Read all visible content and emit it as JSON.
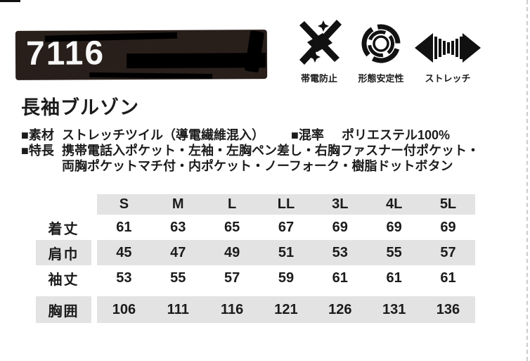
{
  "product": {
    "code": "7116",
    "title": "長袖ブルゾン"
  },
  "icons": [
    {
      "name": "anti-static",
      "label": "帯電防止"
    },
    {
      "name": "shape-stability",
      "label": "形態安定性"
    },
    {
      "name": "stretch",
      "label": "ストレッチ"
    }
  ],
  "specs": {
    "material_label": "■素材",
    "material_value": "ストレッチツイル（導電繊維混入）",
    "blend_label": "■混率",
    "blend_value": "ポリエステル100%",
    "feature_label": "■特長",
    "feature_line1": "携帯電話入ポケット・左袖・左胸ペン差し・右胸ファスナー付ポケット・",
    "feature_line2": "両胸ポケットマチ付・内ポケット・ノーフォーク・樹脂ドットボタン"
  },
  "size_table": {
    "columns": [
      "S",
      "M",
      "L",
      "LL",
      "3L",
      "4L",
      "5L"
    ],
    "rows": [
      {
        "label": "着丈",
        "values": [
          61,
          63,
          65,
          67,
          69,
          69,
          69
        ]
      },
      {
        "label": "肩巾",
        "values": [
          45,
          47,
          49,
          51,
          53,
          55,
          57
        ]
      },
      {
        "label": "袖丈",
        "values": [
          53,
          55,
          57,
          59,
          61,
          61,
          61
        ]
      },
      {
        "label": "胸囲",
        "values": [
          106,
          111,
          116,
          121,
          126,
          131,
          136
        ]
      }
    ]
  },
  "colors": {
    "banner_bg": "#281f1b",
    "row_stripe": "#e3e3e3",
    "ink": "#1b1b1b"
  }
}
